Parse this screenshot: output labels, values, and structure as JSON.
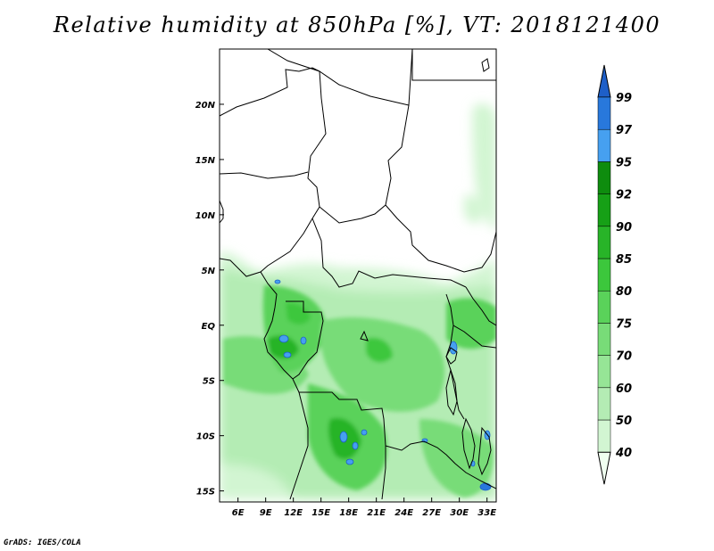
{
  "title": "Relative humidity at 850hPa [%], VT: 2018121400",
  "footer": "GrADS: IGES/COLA",
  "map": {
    "lon_range": [
      4,
      34
    ],
    "lat_range": [
      -16,
      25
    ],
    "lon_ticks": [
      {
        "value": 6,
        "label": "6E"
      },
      {
        "value": 9,
        "label": "9E"
      },
      {
        "value": 12,
        "label": "12E"
      },
      {
        "value": 15,
        "label": "15E"
      },
      {
        "value": 18,
        "label": "18E"
      },
      {
        "value": 21,
        "label": "21E"
      },
      {
        "value": 24,
        "label": "24E"
      },
      {
        "value": 27,
        "label": "27E"
      },
      {
        "value": 30,
        "label": "30E"
      },
      {
        "value": 33,
        "label": "33E"
      }
    ],
    "lat_ticks": [
      {
        "value": 20,
        "label": "20N"
      },
      {
        "value": 15,
        "label": "15N"
      },
      {
        "value": 10,
        "label": "10N"
      },
      {
        "value": 5,
        "label": "5N"
      },
      {
        "value": 0,
        "label": "EQ"
      },
      {
        "value": -5,
        "label": "5S"
      },
      {
        "value": -10,
        "label": "10S"
      },
      {
        "value": -15,
        "label": "15S"
      }
    ]
  },
  "colorbar": {
    "levels": [
      "40",
      "50",
      "60",
      "70",
      "75",
      "80",
      "85",
      "90",
      "92",
      "95",
      "97",
      "99"
    ],
    "colors": [
      "#f0fff0",
      "#d2f5d2",
      "#b4ecb4",
      "#96e596",
      "#78dc78",
      "#5ad25a",
      "#3cc73c",
      "#28b428",
      "#16a016",
      "#0e8c0e",
      "#46a0f0",
      "#2878dc",
      "#1e5fc8"
    ],
    "colors_note": "colors[0] is the lower arrow (below 40), last is the upper arrow (above 99)"
  }
}
